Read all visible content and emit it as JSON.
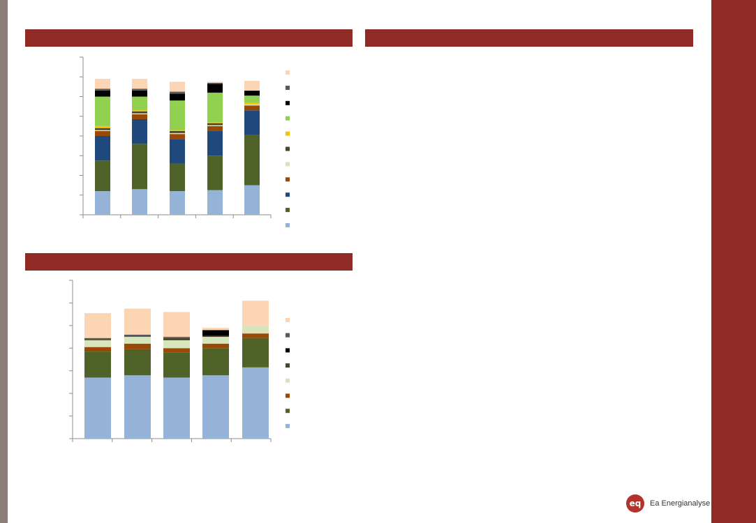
{
  "brand": {
    "name": "Ea Energianalyse",
    "mark": "eq",
    "color": "#b3322b"
  },
  "frame": {
    "strip_color": "#8b7d77",
    "band_color": "#8f2a24"
  },
  "chart_data": [
    {
      "type": "bar",
      "stacked": true,
      "title": "",
      "xlabel": "",
      "ylabel": "",
      "categories": [
        "",
        "",
        "",
        "",
        ""
      ],
      "ylim": [
        0,
        8
      ],
      "grid": false,
      "legend_position": "right",
      "series": [
        {
          "color": "#95b3d7",
          "values": [
            1.2,
            1.3,
            1.2,
            1.25,
            1.5
          ]
        },
        {
          "color": "#4f6228",
          "values": [
            1.55,
            2.3,
            1.4,
            1.75,
            2.55
          ]
        },
        {
          "color": "#1f497d",
          "values": [
            1.25,
            1.25,
            1.25,
            1.25,
            1.25
          ]
        },
        {
          "color": "#984807",
          "values": [
            0.25,
            0.25,
            0.25,
            0.25,
            0.25
          ]
        },
        {
          "color": "#d7e4bc",
          "values": [
            0.05,
            0.05,
            0.05,
            0.05,
            0.05
          ]
        },
        {
          "color": "#4a452a",
          "values": [
            0.1,
            0.1,
            0.1,
            0.1,
            0.0
          ]
        },
        {
          "color": "#ffc000",
          "values": [
            0.1,
            0.05,
            0.05,
            0.05,
            0.1
          ]
        },
        {
          "color": "#92d050",
          "values": [
            1.5,
            0.7,
            1.5,
            1.5,
            0.35
          ]
        },
        {
          "color": "#000000",
          "values": [
            0.3,
            0.3,
            0.35,
            0.45,
            0.25
          ]
        },
        {
          "color": "#595959",
          "values": [
            0.1,
            0.1,
            0.1,
            0.05,
            0.0
          ]
        },
        {
          "color": "#fcd5b4",
          "values": [
            0.5,
            0.5,
            0.5,
            0.05,
            0.5
          ]
        }
      ]
    },
    {
      "type": "bar",
      "stacked": true,
      "title": "",
      "xlabel": "",
      "ylabel": "",
      "categories": [
        "",
        "",
        "",
        "",
        ""
      ],
      "ylim": [
        0,
        7
      ],
      "grid": false,
      "legend_position": "right",
      "series": [
        {
          "color": "#95b3d7",
          "values": [
            2.7,
            2.8,
            2.7,
            2.8,
            3.15
          ]
        },
        {
          "color": "#4f6228",
          "values": [
            1.15,
            1.15,
            1.1,
            1.2,
            1.3
          ]
        },
        {
          "color": "#984807",
          "values": [
            0.2,
            0.25,
            0.2,
            0.2,
            0.2
          ]
        },
        {
          "color": "#d7e4bc",
          "values": [
            0.3,
            0.3,
            0.35,
            0.3,
            0.35
          ]
        },
        {
          "color": "#4a452a",
          "values": [
            0.05,
            0.0,
            0.1,
            0.05,
            0.0
          ]
        },
        {
          "color": "#000000",
          "values": [
            0.0,
            0.0,
            0.0,
            0.25,
            0.0
          ]
        },
        {
          "color": "#595959",
          "values": [
            0.05,
            0.1,
            0.05,
            0.0,
            0.0
          ]
        },
        {
          "color": "#fcd5b4",
          "values": [
            1.1,
            1.15,
            1.1,
            0.1,
            1.1
          ]
        }
      ]
    }
  ]
}
